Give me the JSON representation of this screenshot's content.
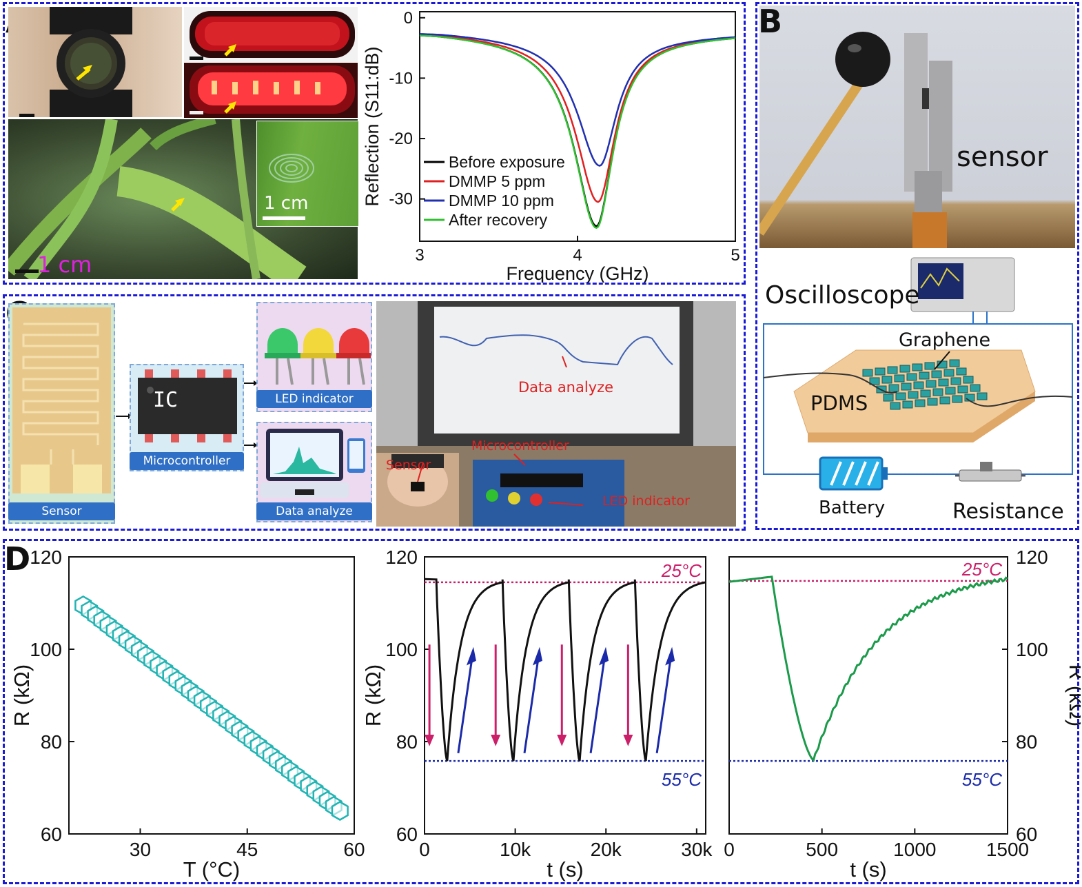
{
  "panels": {
    "a": {
      "label": "A"
    },
    "b": {
      "label": "B"
    },
    "c": {
      "label": "C"
    },
    "d": {
      "label": "D"
    }
  },
  "panel_a": {
    "scale_leaf_inset": "1 cm",
    "scale_plant": "1 cm"
  },
  "panel_b": {
    "sensor_label": "sensor",
    "oscilloscope_label": "Oscilloscope",
    "graphene_label": "Graphene",
    "pdms_label": "PDMS",
    "battery_label": "Battery",
    "resistance_label": "Resistance"
  },
  "panel_c": {
    "sensor_tag": "Sensor",
    "microcontroller_tag": "Microcontroller",
    "led_tag": "LED indicator",
    "data_tag": "Data analyze",
    "ic_label": "IC",
    "photo_data_analyze": "Data analyze",
    "photo_microcontroller": "Microcontroller",
    "photo_sensor": "Sensor",
    "photo_led": "LED indicator"
  },
  "colors": {
    "dashed_border": "#1a1ad6",
    "magenta": "#cc1f6a",
    "navy": "#1a2aa8",
    "teal": "#22b3b3",
    "green_curve": "#1b9a4a"
  },
  "chart_data": [
    {
      "id": "reflection",
      "type": "line",
      "xlabel": "Frequency (GHz)",
      "ylabel": "Reflection (S11:dB)",
      "xlim": [
        3,
        5
      ],
      "ylim": [
        -37,
        1
      ],
      "xticks": [
        "3",
        "4",
        "5"
      ],
      "yticks": [
        "0",
        "-10",
        "-20",
        "-30"
      ],
      "legend_position": "bottom-left",
      "series": [
        {
          "name": "Before exposure",
          "color": "#000000",
          "min_x": 4.12,
          "min_y": -34.5
        },
        {
          "name": "DMMP 5 ppm",
          "color": "#e02020",
          "min_x": 4.13,
          "min_y": -30.5
        },
        {
          "name": "DMMP 10 ppm",
          "color": "#2030b0",
          "min_x": 4.14,
          "min_y": -24.5
        },
        {
          "name": "After recovery",
          "color": "#30c030",
          "min_x": 4.12,
          "min_y": -34.8
        }
      ]
    },
    {
      "id": "r_vs_t",
      "type": "scatter",
      "xlabel": "T (°C)",
      "ylabel": "R (kΩ)",
      "xlim": [
        20,
        60
      ],
      "ylim": [
        60,
        120
      ],
      "xticks": [
        "30",
        "45",
        "60"
      ],
      "yticks": [
        "60",
        "80",
        "100",
        "120"
      ],
      "marker": "hexagon",
      "x_start": 22,
      "x_end": 58,
      "y_start": 109.5,
      "y_end": 65,
      "points": 42
    },
    {
      "id": "cycling",
      "type": "line",
      "xlabel": "t (s)",
      "ylabel": "R (kΩ)",
      "xlim": [
        0,
        31000
      ],
      "ylim": [
        60,
        120
      ],
      "xticks": [
        "0",
        "10k",
        "20k",
        "30k"
      ],
      "yticks": [
        "60",
        "80",
        "100",
        "120"
      ],
      "ref_high": {
        "y": 114.5,
        "label": "25°C"
      },
      "ref_low": {
        "y": 75.8,
        "label": "55°C"
      },
      "cycles": [
        {
          "drop": 1300,
          "min_t": 2500
        },
        {
          "drop": 8600,
          "min_t": 9800
        },
        {
          "drop": 15900,
          "min_t": 17100
        },
        {
          "drop": 23200,
          "min_t": 24400
        }
      ]
    },
    {
      "id": "single_cycle",
      "type": "line",
      "xlabel": "t (s)",
      "ylabel": "R (kΩ)",
      "xlim": [
        0,
        1500
      ],
      "ylim": [
        60,
        120
      ],
      "xticks": [
        "0",
        "500",
        "1000",
        "1500"
      ],
      "yticks": [
        "60",
        "80",
        "100",
        "120"
      ],
      "ref_high": {
        "y": 114.8,
        "label": "25°C"
      },
      "ref_low": {
        "y": 75.8,
        "label": "55°C"
      },
      "drop_start_t": 230,
      "min_t": 455,
      "min_r": 76
    }
  ]
}
